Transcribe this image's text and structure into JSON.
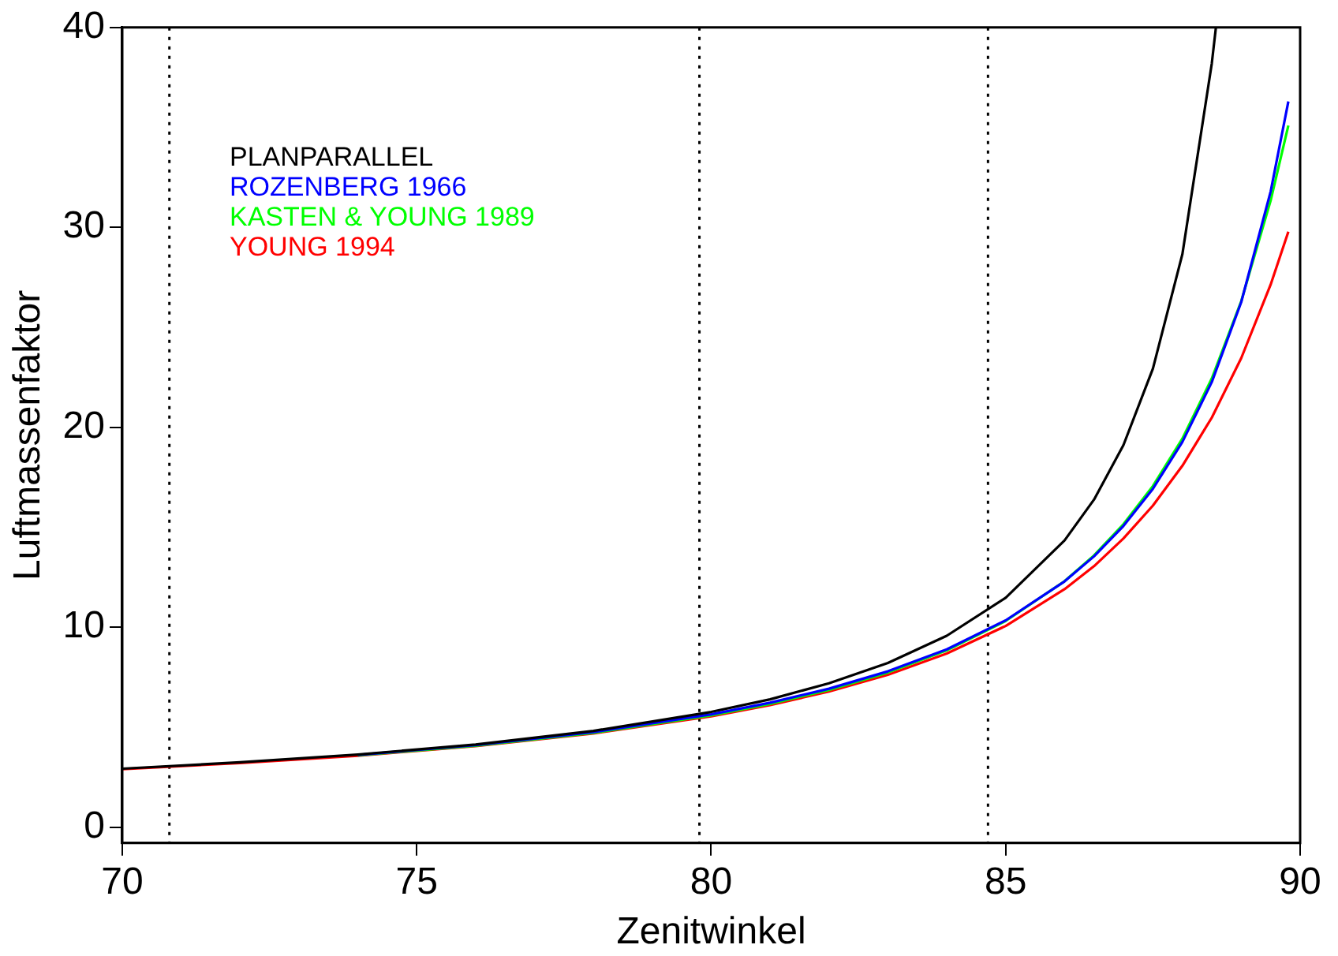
{
  "chart_data": {
    "type": "line",
    "xlabel": "Zenitwinkel",
    "ylabel": "Luftmassenfaktor",
    "xlim": [
      70,
      90
    ],
    "xticks": [
      70,
      75,
      80,
      85,
      90
    ],
    "ylim": [
      -0.8,
      40
    ],
    "yticks": [
      0,
      10,
      20,
      30,
      40
    ],
    "grid": false,
    "legend": "top left",
    "ref_lines": [
      {
        "axis": "x",
        "value": 70.8,
        "color": "#000000",
        "line_style": "dotted"
      },
      {
        "axis": "x",
        "value": 79.8,
        "color": "#000000",
        "line_style": "dotted"
      },
      {
        "axis": "x",
        "value": 84.7,
        "color": "#000000",
        "line_style": "dotted"
      }
    ],
    "series": [
      {
        "name": "PLANPARALLEL",
        "color": "#000000",
        "x": [
          70,
          72,
          74,
          76,
          78,
          80,
          81,
          82,
          83,
          84,
          85,
          86,
          86.5,
          87,
          87.5,
          88,
          88.5,
          88.57
        ],
        "values": [
          2.92,
          3.24,
          3.63,
          4.13,
          4.81,
          5.76,
          6.39,
          7.19,
          8.21,
          9.57,
          11.47,
          14.34,
          16.38,
          19.11,
          22.93,
          28.65,
          38.2,
          40.0
        ]
      },
      {
        "name": "ROZENBERG 1966",
        "color": "#0000ff",
        "x": [
          74,
          76,
          78,
          80,
          81,
          82,
          83,
          84,
          85,
          86,
          86.5,
          87,
          87.5,
          88,
          88.5,
          89,
          89.5,
          89.8
        ],
        "values": [
          3.61,
          4.1,
          4.75,
          5.64,
          6.22,
          6.92,
          7.79,
          8.89,
          10.34,
          12.29,
          13.54,
          15.06,
          16.92,
          19.26,
          22.26,
          26.26,
          31.8,
          36.3
        ]
      },
      {
        "name": "KASTEN & YOUNG 1989",
        "color": "#00ff00",
        "x": [
          74,
          76,
          78,
          80,
          81,
          82,
          83,
          84,
          85,
          86,
          86.5,
          87,
          87.5,
          88,
          88.5,
          89,
          89.5,
          89.8
        ],
        "values": [
          3.59,
          4.07,
          4.71,
          5.59,
          6.16,
          6.86,
          7.73,
          8.84,
          10.31,
          12.3,
          13.59,
          15.15,
          17.06,
          19.43,
          22.44,
          26.31,
          31.35,
          35.09
        ]
      },
      {
        "name": "YOUNG 1994",
        "color": "#ff0000",
        "x": [
          70,
          72,
          74,
          76,
          78,
          80,
          81,
          82,
          83,
          84,
          85,
          86,
          86.5,
          87,
          87.5,
          88,
          88.5,
          89,
          89.5,
          89.8
        ],
        "values": [
          2.9,
          3.2,
          3.57,
          4.05,
          4.68,
          5.54,
          6.1,
          6.78,
          7.62,
          8.68,
          10.06,
          11.9,
          13.05,
          14.44,
          16.08,
          18.07,
          20.48,
          23.46,
          27.14,
          29.78
        ]
      }
    ]
  }
}
